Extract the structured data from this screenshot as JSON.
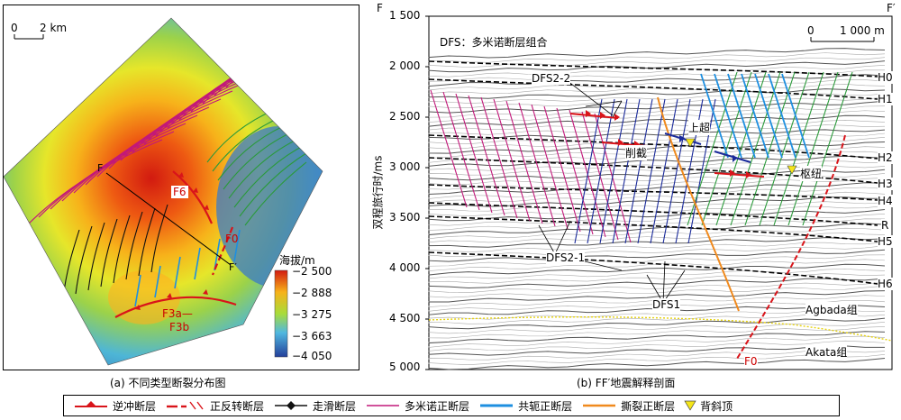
{
  "map": {
    "scale_zero": "0",
    "scale_value": "2 km",
    "labels": {
      "F": "F",
      "F_prime": "F′",
      "F6": "F6",
      "F0": "F0",
      "F3a": "F3a—",
      "F3b": "F3b"
    },
    "colorbar": {
      "title": "海拔/m",
      "ticks": [
        "−2 500",
        "−2 888",
        "−3 275",
        "−3 663",
        "−4 050"
      ]
    },
    "caption": "(a) 不同类型断裂分布图"
  },
  "section": {
    "left_label": "F",
    "right_label": "F′",
    "title": "DFS：多米诺断层组合",
    "scale_zero": "0",
    "scale_value": "1 000 m",
    "yaxis_label": "双程旅行时/ms",
    "yticks": [
      "1 500",
      "2 000",
      "2 500",
      "3 000",
      "3 500",
      "4 000",
      "4 500",
      "5 000"
    ],
    "horizons": [
      "H0",
      "H1",
      "H2",
      "H3",
      "H4",
      "R",
      "H5",
      "H6"
    ],
    "annotations": {
      "dfs22": "DFS2-2",
      "dfs21": "DFS2-1",
      "dfs1": "DFS1",
      "shangchao": "上超",
      "xiejie": "削截",
      "shuniu": "枢纽",
      "agbada": "Agbada组",
      "akata": "Akata组",
      "f0": "F0"
    },
    "caption": "(b) FF′地震解释剖面"
  },
  "legend": [
    {
      "label": "逆冲断层",
      "color": "#d9141a"
    },
    {
      "label": "正反转断层",
      "color": "#d9141a"
    },
    {
      "label": "走滑断层",
      "color": "#000000"
    },
    {
      "label": "多米诺正断层",
      "color": "#c2187a"
    },
    {
      "label": "共轭正断层",
      "color": "#1e8fe0"
    },
    {
      "label": "撕裂正断层",
      "color": "#f08a1e"
    },
    {
      "label": "背斜顶",
      "color": "#f5e61a"
    }
  ]
}
